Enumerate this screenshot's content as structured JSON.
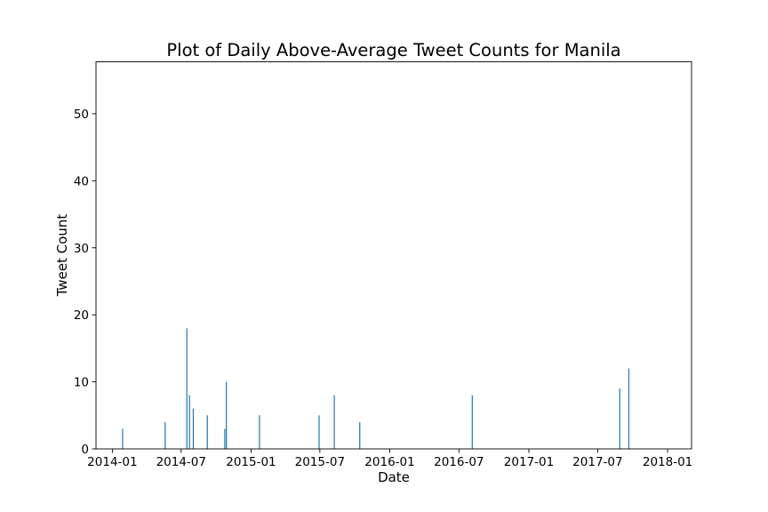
{
  "chart_data": {
    "type": "bar",
    "title": "Plot of Daily Above-Average Tweet Counts for Manila",
    "xlabel": "Date",
    "ylabel": "Tweet Count",
    "x_ticks": [
      "2014-01",
      "2014-07",
      "2015-01",
      "2015-07",
      "2016-01",
      "2016-07",
      "2017-01",
      "2017-07",
      "2018-01"
    ],
    "y_ticks": [
      0,
      10,
      20,
      30,
      40,
      50
    ],
    "xlim": [
      "2013-11-19",
      "2018-03-05"
    ],
    "ylim": [
      0,
      57.75
    ],
    "grid": false,
    "bar_color": "#1f77b4",
    "data": [
      {
        "date": "2014-01-28",
        "value": 3
      },
      {
        "date": "2014-05-20",
        "value": 4
      },
      {
        "date": "2014-07-16",
        "value": 18
      },
      {
        "date": "2014-07-23",
        "value": 8
      },
      {
        "date": "2014-08-02",
        "value": 6
      },
      {
        "date": "2014-09-08",
        "value": 5
      },
      {
        "date": "2014-10-24",
        "value": 3
      },
      {
        "date": "2014-10-28",
        "value": 10
      },
      {
        "date": "2015-01-23",
        "value": 5
      },
      {
        "date": "2015-06-29",
        "value": 5
      },
      {
        "date": "2015-08-08",
        "value": 8
      },
      {
        "date": "2015-10-14",
        "value": 4
      },
      {
        "date": "2016-08-05",
        "value": 8
      },
      {
        "date": "2017-08-28",
        "value": 9
      },
      {
        "date": "2017-09-21",
        "value": 12
      }
    ]
  }
}
